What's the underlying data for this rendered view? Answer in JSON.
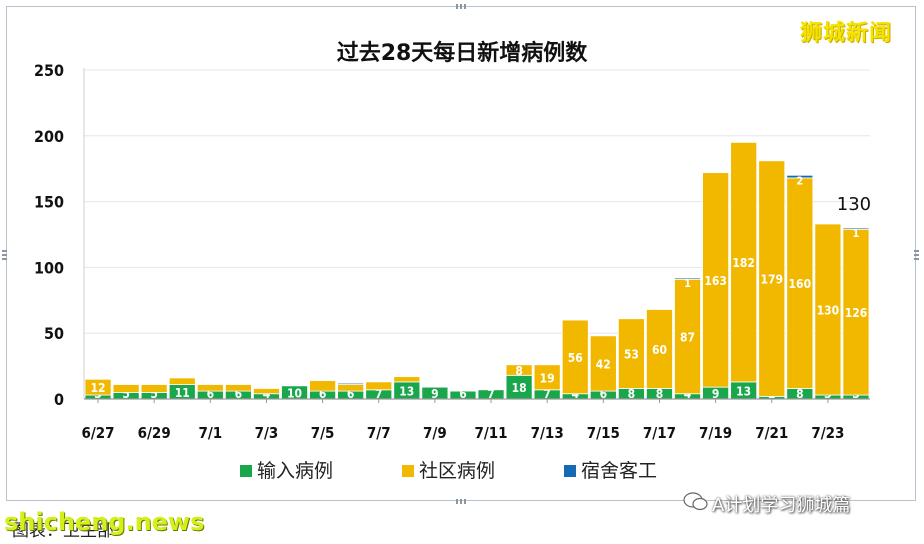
{
  "brand_label": "狮城新闻",
  "wechat_label": "A计划学习狮城篇",
  "caption": "图表：卫生部",
  "watermark": "shicheng.news",
  "chart_data": {
    "type": "bar",
    "stacked": true,
    "title": "过去28天每日新增病例数",
    "xlabel": "",
    "ylabel": "",
    "ylim": [
      0,
      250
    ],
    "yticks": [
      0,
      50,
      100,
      150,
      200,
      250
    ],
    "grid": true,
    "legend": "bottom",
    "categories": [
      "6/27",
      "6/28",
      "6/29",
      "6/30",
      "7/1",
      "7/2",
      "7/3",
      "7/4",
      "7/5",
      "7/6",
      "7/7",
      "7/8",
      "7/9",
      "7/10",
      "7/11",
      "7/12",
      "7/13",
      "7/14",
      "7/15",
      "7/16",
      "7/17",
      "7/18",
      "7/19",
      "7/20",
      "7/21",
      "7/22",
      "7/23",
      "7/24"
    ],
    "tick_labels": [
      "6/27",
      "",
      "6/29",
      "",
      "7/1",
      "",
      "7/3",
      "",
      "7/5",
      "",
      "7/7",
      "",
      "7/9",
      "",
      "7/11",
      "",
      "7/13",
      "",
      "7/15",
      "",
      "7/17",
      "",
      "7/19",
      "",
      "7/21",
      "",
      "7/23",
      ""
    ],
    "series": [
      {
        "name": "输入病例",
        "color": "#1aa64a",
        "values": [
          3,
          5,
          5,
          11,
          6,
          6,
          4,
          10,
          6,
          6,
          7,
          13,
          9,
          6,
          7,
          18,
          7,
          4,
          6,
          8,
          8,
          4,
          9,
          13,
          2,
          8,
          3,
          3
        ],
        "labels": [
          "3",
          "5",
          "5",
          "11",
          "6",
          "6",
          "4",
          "10",
          "6",
          "6",
          "7",
          "13",
          "9",
          "6",
          "7",
          "18",
          "7",
          "4",
          "6",
          "8",
          "8",
          "4",
          "9",
          "13",
          "2",
          "8",
          "3",
          "3"
        ]
      },
      {
        "name": "社区病例",
        "color": "#f2b800",
        "values": [
          12,
          6,
          6,
          5,
          5,
          5,
          4,
          0,
          8,
          5,
          6,
          4,
          0,
          0,
          0,
          8,
          19,
          56,
          42,
          53,
          60,
          87,
          163,
          182,
          179,
          160,
          130,
          126
        ],
        "labels": [
          "12",
          "",
          "",
          "",
          "",
          "",
          "",
          "",
          "",
          "",
          "",
          "",
          "",
          "",
          "",
          "8",
          "19",
          "56",
          "42",
          "53",
          "60",
          "87",
          "163",
          "182",
          "179",
          "160",
          "130",
          "126"
        ]
      },
      {
        "name": "宿舍客工",
        "color": "#1669b3",
        "values": [
          0,
          0,
          0,
          0,
          0,
          0,
          0,
          0,
          0,
          1,
          0,
          0,
          0,
          0,
          0,
          0,
          0,
          0,
          0,
          0,
          0,
          1,
          0,
          0,
          0,
          2,
          0,
          1
        ],
        "labels": [
          "",
          "",
          "",
          "",
          "",
          "",
          "",
          "",
          "",
          "",
          "",
          "",
          "",
          "",
          "",
          "",
          "",
          "",
          "",
          "",
          "",
          "1",
          "",
          "",
          "",
          "2",
          "",
          "1"
        ]
      }
    ],
    "annotations": [
      {
        "category": "7/24",
        "text": "130"
      }
    ]
  }
}
